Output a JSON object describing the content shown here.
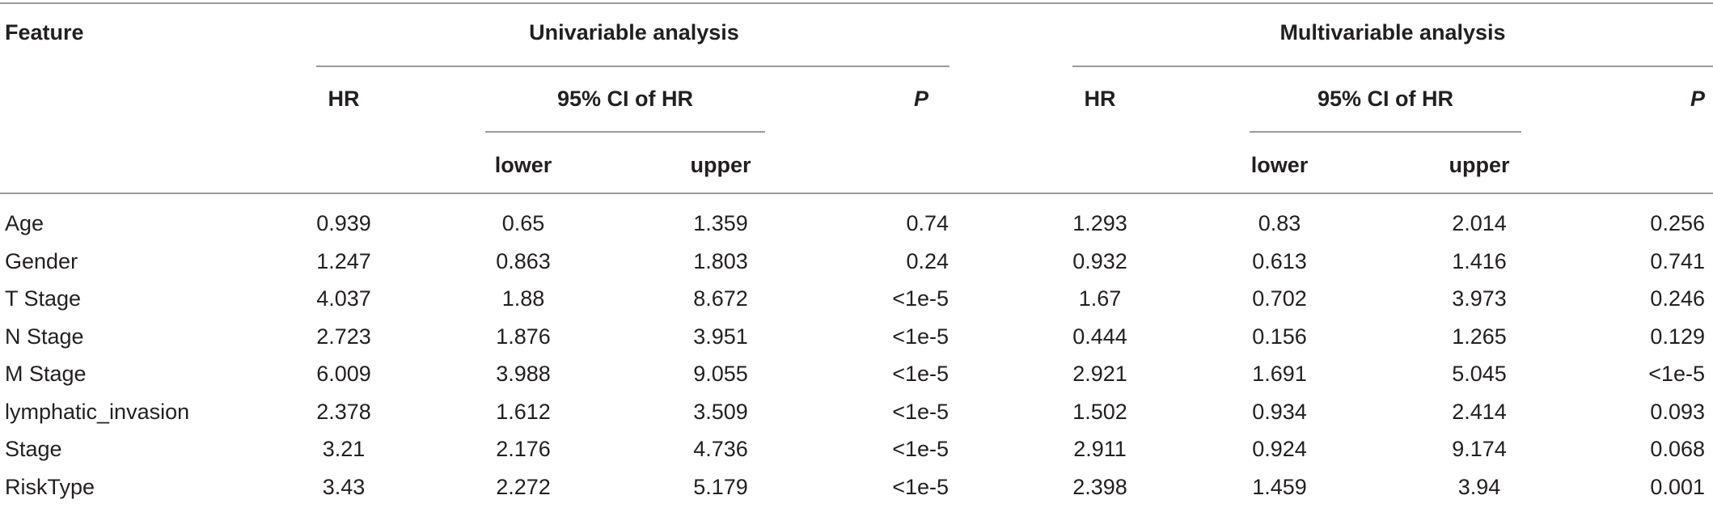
{
  "header": {
    "feature": "Feature",
    "univariable": "Univariable analysis",
    "multivariable": "Multivariable analysis",
    "hr": "HR",
    "ci": "95% CI of HR",
    "p": "P",
    "lower": "lower",
    "upper": "upper"
  },
  "rows": [
    {
      "feature": "Age",
      "u_hr": "0.939",
      "u_lower": "0.65",
      "u_upper": "1.359",
      "u_p": "0.74",
      "m_hr": "1.293",
      "m_lower": "0.83",
      "m_upper": "2.014",
      "m_p": "0.256"
    },
    {
      "feature": "Gender",
      "u_hr": "1.247",
      "u_lower": "0.863",
      "u_upper": "1.803",
      "u_p": "0.24",
      "m_hr": "0.932",
      "m_lower": "0.613",
      "m_upper": "1.416",
      "m_p": "0.741"
    },
    {
      "feature": "T Stage",
      "u_hr": "4.037",
      "u_lower": "1.88",
      "u_upper": "8.672",
      "u_p": "<1e-5",
      "m_hr": "1.67",
      "m_lower": "0.702",
      "m_upper": "3.973",
      "m_p": "0.246"
    },
    {
      "feature": "N Stage",
      "u_hr": "2.723",
      "u_lower": "1.876",
      "u_upper": "3.951",
      "u_p": "<1e-5",
      "m_hr": "0.444",
      "m_lower": "0.156",
      "m_upper": "1.265",
      "m_p": "0.129"
    },
    {
      "feature": "M Stage",
      "u_hr": "6.009",
      "u_lower": "3.988",
      "u_upper": "9.055",
      "u_p": "<1e-5",
      "m_hr": "2.921",
      "m_lower": "1.691",
      "m_upper": "5.045",
      "m_p": "<1e-5"
    },
    {
      "feature": "lymphatic_invasion",
      "u_hr": "2.378",
      "u_lower": "1.612",
      "u_upper": "3.509",
      "u_p": "<1e-5",
      "m_hr": "1.502",
      "m_lower": "0.934",
      "m_upper": "2.414",
      "m_p": "0.093"
    },
    {
      "feature": "Stage",
      "u_hr": "3.21",
      "u_lower": "2.176",
      "u_upper": "4.736",
      "u_p": "<1e-5",
      "m_hr": "2.911",
      "m_lower": "0.924",
      "m_upper": "9.174",
      "m_p": "0.068"
    },
    {
      "feature": "RiskType",
      "u_hr": "3.43",
      "u_lower": "2.272",
      "u_upper": "5.179",
      "u_p": "<1e-5",
      "m_hr": "2.398",
      "m_lower": "1.459",
      "m_upper": "3.94",
      "m_p": "0.001"
    }
  ]
}
